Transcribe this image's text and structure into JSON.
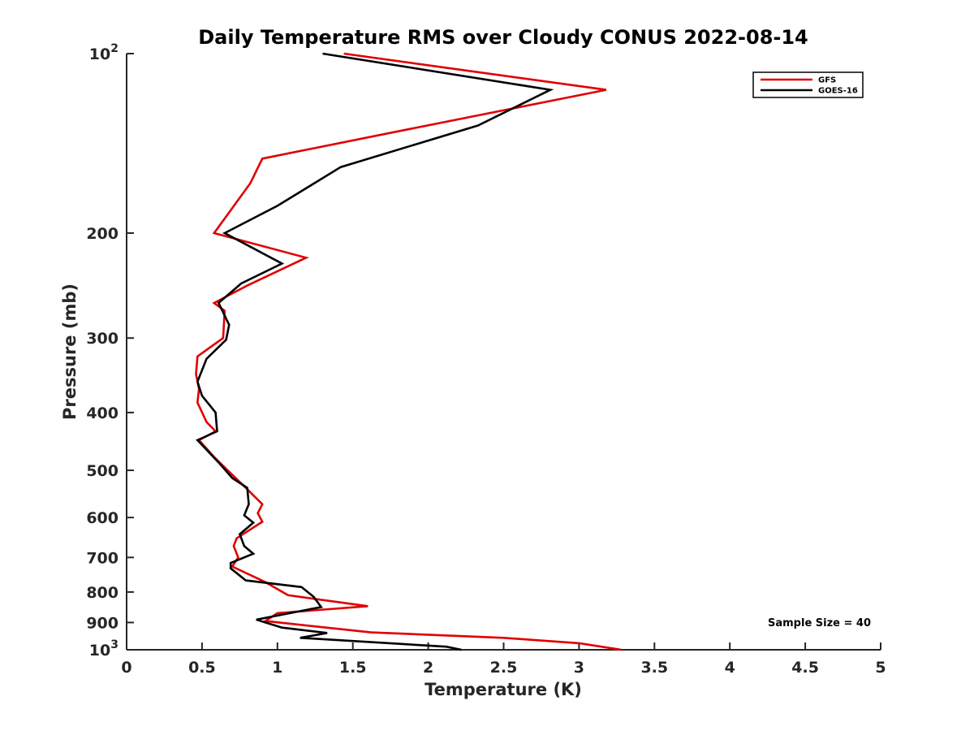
{
  "chart_data": {
    "type": "line",
    "title": "Daily Temperature RMS over Cloudy CONUS 2022-08-14",
    "xlabel": "Temperature (K)",
    "ylabel": "Pressure (mb)",
    "xlim": [
      0,
      5
    ],
    "ylim": [
      100,
      1000
    ],
    "y_scale": "log",
    "y_reversed": true,
    "x_ticks": [
      "0",
      "0.5",
      "1",
      "1.5",
      "2",
      "2.5",
      "3",
      "3.5",
      "4",
      "4.5",
      "5"
    ],
    "x_tick_values": [
      0,
      0.5,
      1,
      1.5,
      2,
      2.5,
      3,
      3.5,
      4,
      4.5,
      5
    ],
    "y_ticks": [
      {
        "value": 100,
        "base": "10",
        "exp": "2"
      },
      {
        "value": 200,
        "label": "200"
      },
      {
        "value": 300,
        "label": "300"
      },
      {
        "value": 400,
        "label": "400"
      },
      {
        "value": 500,
        "label": "500"
      },
      {
        "value": 600,
        "label": "600"
      },
      {
        "value": 700,
        "label": "700"
      },
      {
        "value": 800,
        "label": "800"
      },
      {
        "value": 900,
        "label": "900"
      },
      {
        "value": 1000,
        "base": "10",
        "exp": "3"
      }
    ],
    "grid": false,
    "legend_position": "top-right",
    "annotation": "Sample Size = 40",
    "series": [
      {
        "name": "GFS",
        "color": "#e00000",
        "points": [
          [
            1.44,
            100
          ],
          [
            3.18,
            115
          ],
          [
            1.8,
            135
          ],
          [
            0.9,
            150
          ],
          [
            0.82,
            165
          ],
          [
            0.58,
            200
          ],
          [
            1.19,
            220
          ],
          [
            0.8,
            245
          ],
          [
            0.58,
            262
          ],
          [
            0.65,
            270
          ],
          [
            0.64,
            300
          ],
          [
            0.47,
            322
          ],
          [
            0.46,
            345
          ],
          [
            0.48,
            365
          ],
          [
            0.47,
            385
          ],
          [
            0.53,
            415
          ],
          [
            0.59,
            430
          ],
          [
            0.48,
            445
          ],
          [
            0.58,
            475
          ],
          [
            0.67,
            500
          ],
          [
            0.79,
            535
          ],
          [
            0.9,
            570
          ],
          [
            0.87,
            590
          ],
          [
            0.9,
            610
          ],
          [
            0.73,
            650
          ],
          [
            0.71,
            670
          ],
          [
            0.74,
            700
          ],
          [
            0.7,
            725
          ],
          [
            0.92,
            770
          ],
          [
            1.07,
            810
          ],
          [
            1.6,
            845
          ],
          [
            1.0,
            868
          ],
          [
            0.92,
            895
          ],
          [
            1.62,
            935
          ],
          [
            2.5,
            955
          ],
          [
            3.0,
            975
          ],
          [
            3.28,
            1000
          ]
        ]
      },
      {
        "name": "GOES-16",
        "color": "#000000",
        "points": [
          [
            1.3,
            100
          ],
          [
            2.81,
            115
          ],
          [
            2.33,
            132
          ],
          [
            1.42,
            155
          ],
          [
            1.0,
            180
          ],
          [
            0.65,
            200
          ],
          [
            1.03,
            225
          ],
          [
            0.76,
            243
          ],
          [
            0.61,
            262
          ],
          [
            0.68,
            285
          ],
          [
            0.66,
            302
          ],
          [
            0.53,
            325
          ],
          [
            0.47,
            355
          ],
          [
            0.5,
            375
          ],
          [
            0.59,
            400
          ],
          [
            0.6,
            430
          ],
          [
            0.47,
            445
          ],
          [
            0.61,
            485
          ],
          [
            0.7,
            515
          ],
          [
            0.8,
            535
          ],
          [
            0.81,
            570
          ],
          [
            0.78,
            595
          ],
          [
            0.84,
            612
          ],
          [
            0.75,
            640
          ],
          [
            0.78,
            670
          ],
          [
            0.84,
            690
          ],
          [
            0.69,
            715
          ],
          [
            0.69,
            730
          ],
          [
            0.79,
            765
          ],
          [
            1.16,
            785
          ],
          [
            1.24,
            815
          ],
          [
            1.29,
            848
          ],
          [
            0.86,
            890
          ],
          [
            1.03,
            918
          ],
          [
            1.33,
            937
          ],
          [
            1.15,
            955
          ],
          [
            2.12,
            988
          ],
          [
            2.22,
            1000
          ]
        ]
      }
    ]
  }
}
